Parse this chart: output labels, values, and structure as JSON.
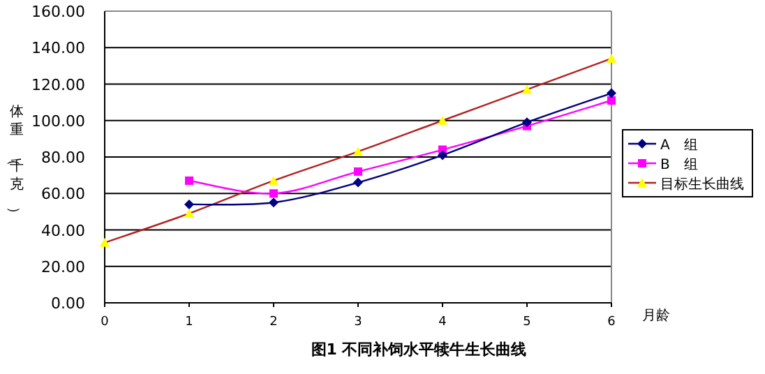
{
  "chart_data": {
    "type": "line",
    "title": "图1 不同补饲水平犊牛生长曲线",
    "xlabel": "月龄",
    "ylabel": "体重（千克）",
    "xlim": [
      0,
      6
    ],
    "xticks": [
      0,
      1,
      2,
      3,
      4,
      5,
      6
    ],
    "ylim": [
      0,
      160
    ],
    "yticks": [
      {
        "value": 0,
        "label": "0.00"
      },
      {
        "value": 20,
        "label": "20.00"
      },
      {
        "value": 40,
        "label": "40.00"
      },
      {
        "value": 60,
        "label": "60.00"
      },
      {
        "value": 80,
        "label": "80.00"
      },
      {
        "value": 100,
        "label": "100.00"
      },
      {
        "value": 120,
        "label": "120.00"
      },
      {
        "value": 140,
        "label": "140.00"
      },
      {
        "value": 160,
        "label": "160.00"
      }
    ],
    "grid": "y",
    "legend": "right",
    "series": [
      {
        "name": "A　组",
        "color": "#000080",
        "marker": "diamond",
        "x": [
          1,
          2,
          3,
          4,
          5,
          6
        ],
        "values": [
          54,
          55,
          66,
          81,
          99,
          115
        ]
      },
      {
        "name": "B　组",
        "color": "#ff00ff",
        "marker": "square",
        "x": [
          1,
          2,
          3,
          4,
          5,
          6
        ],
        "values": [
          67,
          60,
          72,
          84,
          97,
          111
        ]
      },
      {
        "name": "目标生长曲线",
        "color": "#ffff00",
        "marker": "triangle",
        "x": [
          0,
          1,
          2,
          3,
          4,
          5,
          6
        ],
        "values": [
          33,
          49,
          67,
          83,
          100,
          117,
          134
        ]
      }
    ]
  }
}
